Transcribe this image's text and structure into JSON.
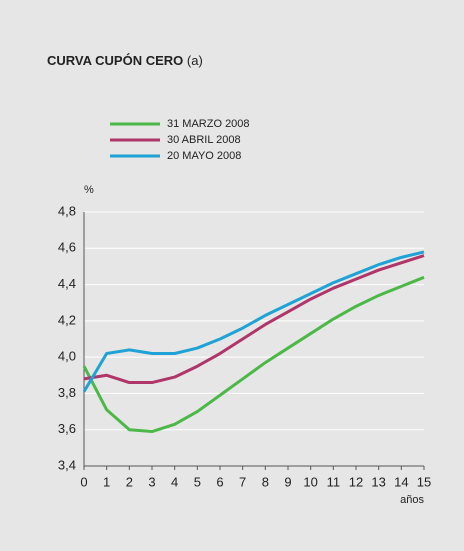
{
  "chart_data": {
    "type": "line",
    "title": "CURVA CUPÓN CERO",
    "title_note": "(a)",
    "y_label": "%",
    "x_label": "años",
    "x": [
      0,
      1,
      2,
      3,
      4,
      5,
      6,
      7,
      8,
      9,
      10,
      11,
      12,
      13,
      14,
      15
    ],
    "series": [
      {
        "name": "31 MARZO 2008",
        "color": "#4cb848",
        "values": [
          3.95,
          3.71,
          3.6,
          3.59,
          3.63,
          3.7,
          3.79,
          3.88,
          3.97,
          4.05,
          4.13,
          4.21,
          4.28,
          4.34,
          4.39,
          4.44
        ]
      },
      {
        "name": "30 ABRIL 2008",
        "color": "#b0366a",
        "values": [
          3.88,
          3.9,
          3.86,
          3.86,
          3.89,
          3.95,
          4.02,
          4.1,
          4.18,
          4.25,
          4.32,
          4.38,
          4.43,
          4.48,
          4.52,
          4.56
        ]
      },
      {
        "name": "20 MAYO 2008",
        "color": "#1fa3d6",
        "values": [
          3.81,
          4.02,
          4.04,
          4.02,
          4.02,
          4.05,
          4.1,
          4.16,
          4.23,
          4.29,
          4.35,
          4.41,
          4.46,
          4.51,
          4.55,
          4.58
        ]
      }
    ],
    "xlim": [
      0,
      15
    ],
    "xticks": [
      0,
      1,
      2,
      3,
      4,
      5,
      6,
      7,
      8,
      9,
      10,
      11,
      12,
      13,
      14,
      15
    ],
    "ylim": [
      3.4,
      4.8
    ],
    "yticks": [
      {
        "value": 3.4,
        "label": "3,4"
      },
      {
        "value": 3.6,
        "label": "3,6"
      },
      {
        "value": 3.8,
        "label": "3,8"
      },
      {
        "value": 4.0,
        "label": "4,0"
      },
      {
        "value": 4.2,
        "label": "4,2"
      },
      {
        "value": 4.4,
        "label": "4,4"
      },
      {
        "value": 4.6,
        "label": "4,6"
      },
      {
        "value": 4.8,
        "label": "4,8"
      }
    ],
    "grid": true
  }
}
